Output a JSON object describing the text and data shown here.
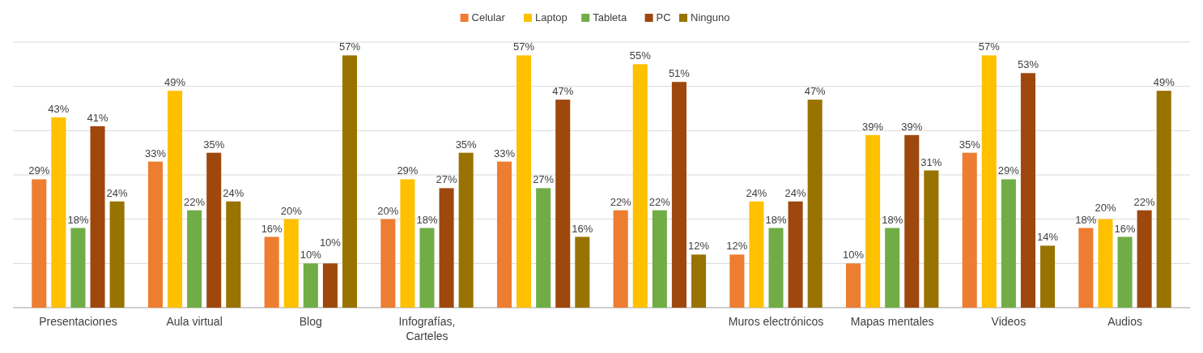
{
  "chart_data": {
    "type": "bar",
    "categories": [
      "Presentaciones",
      "Aula virtual",
      "Blog",
      "Infografías, Carteles",
      null,
      null,
      "Muros electrónicos",
      "Mapas mentales",
      "Videos",
      "Audios"
    ],
    "series": [
      {
        "name": "Celular",
        "color": "#ed7d31",
        "values": [
          29,
          33,
          16,
          20,
          33,
          22,
          12,
          10,
          35,
          18
        ],
        "value_labels": [
          "29%",
          "33%",
          "16%",
          "20%",
          "33%",
          "22%",
          "12%",
          "10%",
          "35%",
          "18%"
        ]
      },
      {
        "name": "Laptop",
        "color": "#ffc000",
        "values": [
          43,
          49,
          20,
          29,
          57,
          55,
          24,
          39,
          57,
          20
        ],
        "value_labels": [
          "43%",
          "49%",
          "20%",
          "29%",
          "57%",
          "55%",
          "24%",
          "39%",
          "57%",
          "20%"
        ]
      },
      {
        "name": "Tableta",
        "color": "#70ad47",
        "values": [
          18,
          22,
          10,
          18,
          27,
          22,
          18,
          18,
          29,
          16
        ],
        "value_labels": [
          "18%",
          "22%",
          "10%",
          "18%",
          "27%",
          "22%",
          "18%",
          "18%",
          "29%",
          "16%"
        ]
      },
      {
        "name": "PC",
        "color": "#9e480e",
        "values": [
          41,
          35,
          10,
          27,
          47,
          51,
          24,
          39,
          53,
          22
        ],
        "value_labels": [
          "41%",
          "35%",
          "10%",
          "27%",
          "47%",
          "51%",
          "24%",
          "39%",
          "53%",
          "22%"
        ]
      },
      {
        "name": "Ninguno",
        "color": "#997300",
        "values": [
          24,
          24,
          57,
          35,
          16,
          12,
          47,
          31,
          14,
          49
        ],
        "value_labels": [
          "24%",
          "24%",
          "57%",
          "35%",
          "16%",
          "12%",
          "47%",
          "31%",
          "14%",
          "49%"
        ]
      }
    ],
    "ylim": [
      0,
      60
    ],
    "yticks": [
      {
        "value": 0,
        "label": null
      },
      {
        "value": 10,
        "label": null
      },
      {
        "value": 20,
        "label": null
      },
      {
        "value": 30,
        "label": null
      },
      {
        "value": 40,
        "label": null
      },
      {
        "value": 50,
        "label": null
      },
      {
        "value": 60,
        "label": null
      }
    ],
    "grid": "y",
    "legend": "top",
    "tick_labels": "x"
  }
}
